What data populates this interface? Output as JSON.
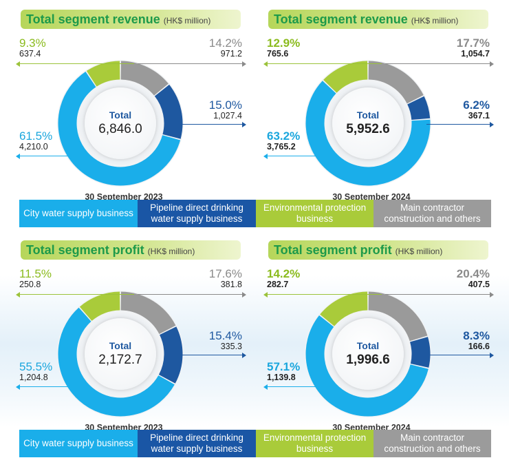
{
  "colors": {
    "city_water": "#1aaeea",
    "pipeline": "#1e58a0",
    "environmental": "#a9cb3a",
    "main_contractor": "#9a9a9a",
    "legend_city": "#1aaeea",
    "legend_pipeline": "#1a56a5",
    "legend_env": "#a9cb3a",
    "legend_main": "#9b9b9b"
  },
  "legend": {
    "city_water": "City water supply business",
    "pipeline": "Pipeline direct drinking water supply business",
    "environmental": "Environmental protection business",
    "main_contractor": "Main contractor construction and others"
  },
  "chart_data": [
    {
      "type": "pie",
      "title": "Total segment revenue",
      "unit": "(HK$ million)",
      "total_label": "Total",
      "total": "6,846.0",
      "date": "30 September 2023",
      "segments": [
        {
          "key": "environmental",
          "percent": "9.3%",
          "value": "637.4",
          "share": 9.3
        },
        {
          "key": "main_contractor",
          "percent": "14.2%",
          "value": "971.2",
          "share": 14.2
        },
        {
          "key": "pipeline",
          "percent": "15.0%",
          "value": "1,027.4",
          "share": 15.0
        },
        {
          "key": "city_water",
          "percent": "61.5%",
          "value": "4,210.0",
          "share": 61.5
        }
      ]
    },
    {
      "type": "pie",
      "title": "Total segment revenue",
      "unit": "(HK$ million)",
      "total_label": "Total",
      "total": "5,952.6",
      "date": "30 September 2024",
      "segments": [
        {
          "key": "environmental",
          "percent": "12.9%",
          "value": "765.6",
          "share": 12.9
        },
        {
          "key": "main_contractor",
          "percent": "17.7%",
          "value": "1,054.7",
          "share": 17.7
        },
        {
          "key": "pipeline",
          "percent": "6.2%",
          "value": "367.1",
          "share": 6.2
        },
        {
          "key": "city_water",
          "percent": "63.2%",
          "value": "3,765.2",
          "share": 63.2
        }
      ]
    },
    {
      "type": "pie",
      "title": "Total segment profit",
      "unit": "(HK$ million)",
      "total_label": "Total",
      "total": "2,172.7",
      "date": "30 September 2023",
      "segments": [
        {
          "key": "environmental",
          "percent": "11.5%",
          "value": "250.8",
          "share": 11.5
        },
        {
          "key": "main_contractor",
          "percent": "17.6%",
          "value": "381.8",
          "share": 17.6
        },
        {
          "key": "pipeline",
          "percent": "15.4%",
          "value": "335.3",
          "share": 15.4
        },
        {
          "key": "city_water",
          "percent": "55.5%",
          "value": "1,204.8",
          "share": 55.5
        }
      ]
    },
    {
      "type": "pie",
      "title": "Total segment profit",
      "unit": "(HK$ million)",
      "total_label": "Total",
      "total": "1,996.6",
      "date": "30 September 2024",
      "segments": [
        {
          "key": "environmental",
          "percent": "14.2%",
          "value": "282.7",
          "share": 14.2
        },
        {
          "key": "main_contractor",
          "percent": "20.4%",
          "value": "407.5",
          "share": 20.4
        },
        {
          "key": "pipeline",
          "percent": "8.3%",
          "value": "166.6",
          "share": 8.3
        },
        {
          "key": "city_water",
          "percent": "57.1%",
          "value": "1,139.8",
          "share": 57.1
        }
      ]
    }
  ]
}
